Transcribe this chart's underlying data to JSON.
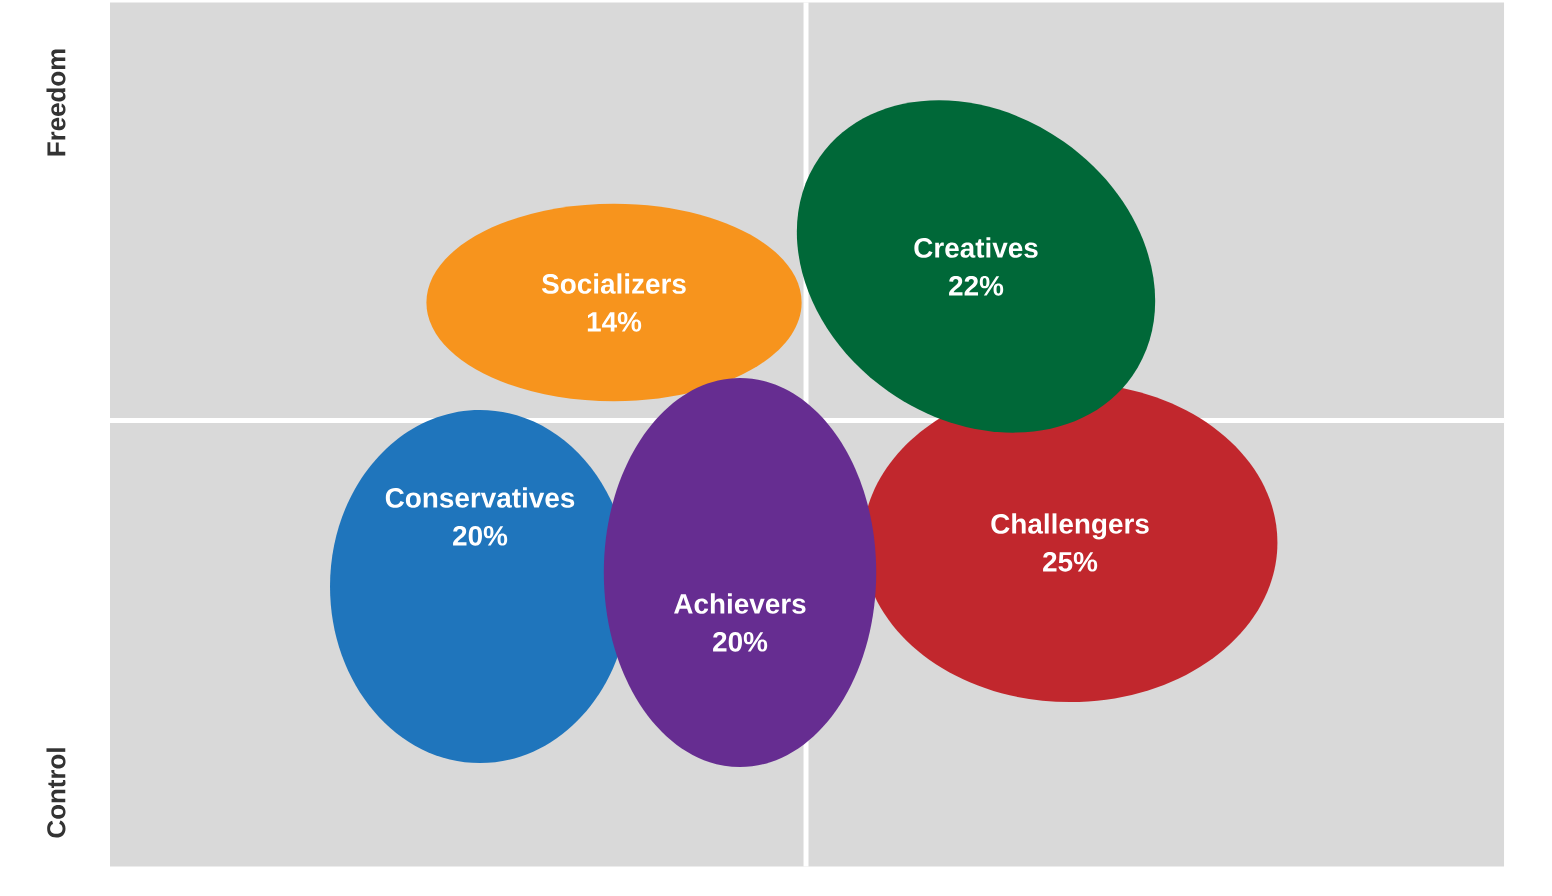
{
  "chart_data": {
    "type": "other",
    "categories": [
      "Socializers",
      "Creatives",
      "Conservatives",
      "Challengers",
      "Achievers"
    ],
    "values": [
      14,
      22,
      20,
      25,
      20
    ],
    "value_labels": [
      "14%",
      "22%",
      "20%",
      "25%",
      "20%"
    ],
    "colors": [
      "#f7941d",
      "#006838",
      "#1f75bc",
      "#c1272d",
      "#662d91"
    ],
    "annotations": [
      "Freedom",
      "Control"
    ]
  }
}
